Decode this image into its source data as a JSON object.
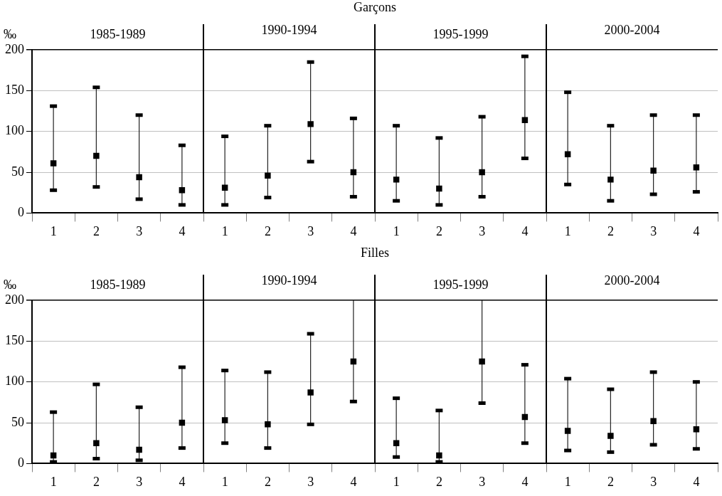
{
  "chart_data": [
    {
      "type": "scatter",
      "title": "Garçons",
      "ylabel": "‰",
      "categories": [
        "1",
        "2",
        "3",
        "4",
        "1",
        "2",
        "3",
        "4",
        "1",
        "2",
        "3",
        "4",
        "1",
        "2",
        "3",
        "4"
      ],
      "annotations": [
        "1985-1989",
        "1990-1994",
        "1995-1999",
        "2000-2004"
      ],
      "values": [
        61,
        70,
        44,
        28,
        31,
        46,
        109,
        50,
        41,
        30,
        50,
        114,
        72,
        41,
        52,
        56
      ],
      "errors": [
        [
          28,
          131
        ],
        [
          32,
          154
        ],
        [
          17,
          120
        ],
        [
          10,
          83
        ],
        [
          10,
          94
        ],
        [
          19,
          107
        ],
        [
          63,
          185
        ],
        [
          20,
          116
        ],
        [
          15,
          107
        ],
        [
          10,
          92
        ],
        [
          20,
          118
        ],
        [
          67,
          192
        ],
        [
          35,
          148
        ],
        [
          15,
          107
        ],
        [
          23,
          120
        ],
        [
          26,
          120
        ]
      ],
      "color": "#000000",
      "marker": "square",
      "ylim": [
        0,
        200
      ],
      "yticks": [
        0,
        50,
        100,
        150,
        200
      ],
      "grid": "y"
    },
    {
      "type": "scatter",
      "title": "Filles",
      "ylabel": "‰",
      "categories": [
        "1",
        "2",
        "3",
        "4",
        "1",
        "2",
        "3",
        "4",
        "1",
        "2",
        "3",
        "4",
        "1",
        "2",
        "3",
        "4"
      ],
      "annotations": [
        "1985-1989",
        "1990-1994",
        "1995-1999",
        "2000-2004"
      ],
      "values": [
        10,
        25,
        17,
        50,
        53,
        48,
        87,
        125,
        25,
        10,
        125,
        57,
        40,
        34,
        52,
        42
      ],
      "errors": [
        [
          2,
          63
        ],
        [
          6,
          97
        ],
        [
          4,
          69
        ],
        [
          19,
          118
        ],
        [
          25,
          114
        ],
        [
          19,
          112
        ],
        [
          48,
          159
        ],
        [
          76,
          200
        ],
        [
          8,
          80
        ],
        [
          2,
          65
        ],
        [
          74,
          200
        ],
        [
          25,
          121
        ],
        [
          16,
          104
        ],
        [
          14,
          91
        ],
        [
          23,
          112
        ],
        [
          18,
          100
        ]
      ],
      "color": "#000000",
      "marker": "square",
      "ylim": [
        0,
        200
      ],
      "yticks": [
        0,
        50,
        100,
        150,
        200
      ],
      "grid": "y"
    }
  ]
}
